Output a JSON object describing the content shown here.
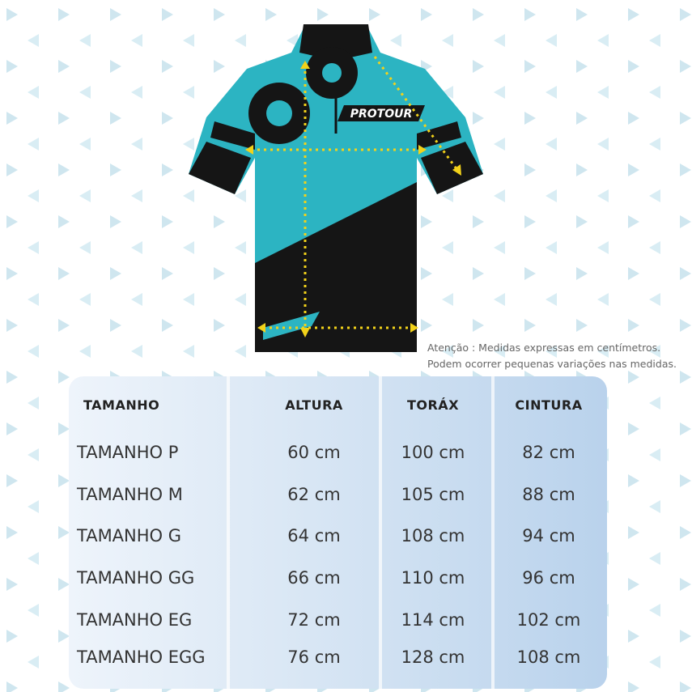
{
  "jersey": {
    "logo": "PROTOUR"
  },
  "note": {
    "lines": [
      "Atenção : Medidas expressas em centímetros.",
      "Podem ocorrer pequenas variações nas medidas."
    ]
  },
  "table": {
    "header": [
      "TAMANHO",
      "ALTURA",
      "TORÁX",
      "CINTURA"
    ],
    "rows": [
      [
        "TAMANHO P",
        "60 cm",
        "100 cm",
        "82 cm"
      ],
      [
        "TAMANHO M",
        "62 cm",
        "105 cm",
        "88 cm"
      ],
      [
        "TAMANHO G",
        "64 cm",
        "108 cm",
        "94 cm"
      ],
      [
        "TAMANHO GG",
        "66 cm",
        "110 cm",
        "96 cm"
      ],
      [
        "TAMANHO EG",
        "72 cm",
        "114 cm",
        "102 cm"
      ],
      [
        "TAMANHO EGG",
        "76 cm",
        "128 cm",
        "108 cm"
      ]
    ]
  }
}
